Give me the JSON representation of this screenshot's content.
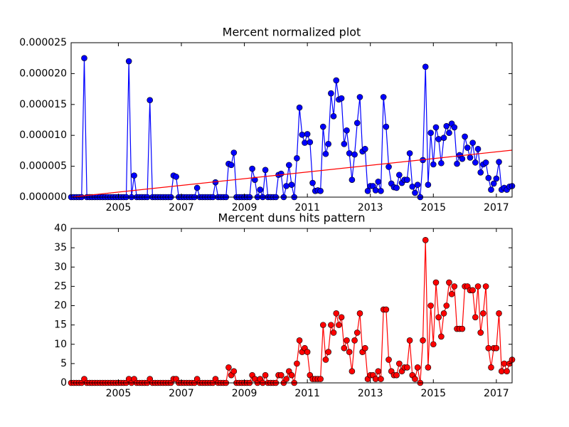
{
  "chart_data": [
    {
      "type": "line",
      "title": "Mercent normalized plot",
      "x": [
        2003.5,
        2003.583,
        2003.667,
        2003.75,
        2003.833,
        2003.917,
        2004,
        2004.083,
        2004.167,
        2004.25,
        2004.333,
        2004.417,
        2004.5,
        2004.583,
        2004.667,
        2004.75,
        2004.833,
        2004.917,
        2005,
        2005.083,
        2005.167,
        2005.25,
        2005.333,
        2005.417,
        2005.5,
        2005.583,
        2005.667,
        2005.75,
        2005.833,
        2005.917,
        2006,
        2006.083,
        2006.167,
        2006.25,
        2006.333,
        2006.417,
        2006.5,
        2006.583,
        2006.667,
        2006.75,
        2006.833,
        2006.917,
        2007,
        2007.083,
        2007.167,
        2007.25,
        2007.333,
        2007.417,
        2007.5,
        2007.583,
        2007.667,
        2007.75,
        2007.833,
        2007.917,
        2008,
        2008.083,
        2008.167,
        2008.25,
        2008.333,
        2008.417,
        2008.5,
        2008.583,
        2008.667,
        2008.75,
        2008.833,
        2008.917,
        2009,
        2009.083,
        2009.167,
        2009.25,
        2009.333,
        2009.417,
        2009.5,
        2009.583,
        2009.667,
        2009.75,
        2009.833,
        2009.917,
        2010,
        2010.083,
        2010.167,
        2010.25,
        2010.333,
        2010.417,
        2010.5,
        2010.583,
        2010.667,
        2010.75,
        2010.833,
        2010.917,
        2011,
        2011.083,
        2011.167,
        2011.25,
        2011.333,
        2011.417,
        2011.5,
        2011.583,
        2011.667,
        2011.75,
        2011.833,
        2011.917,
        2012,
        2012.083,
        2012.167,
        2012.25,
        2012.333,
        2012.417,
        2012.5,
        2012.583,
        2012.667,
        2012.75,
        2012.833,
        2012.917,
        2013,
        2013.083,
        2013.167,
        2013.25,
        2013.333,
        2013.417,
        2013.5,
        2013.583,
        2013.667,
        2013.75,
        2013.833,
        2013.917,
        2014,
        2014.083,
        2014.167,
        2014.25,
        2014.333,
        2014.417,
        2014.5,
        2014.583,
        2014.667,
        2014.75,
        2014.833,
        2014.917,
        2015,
        2015.083,
        2015.167,
        2015.25,
        2015.333,
        2015.417,
        2015.5,
        2015.583,
        2015.667,
        2015.75,
        2015.833,
        2015.917,
        2016,
        2016.083,
        2016.167,
        2016.25,
        2016.333,
        2016.417,
        2016.5,
        2016.583,
        2016.667,
        2016.75,
        2016.833,
        2016.917,
        2017,
        2017.083,
        2017.167,
        2017.25,
        2017.333,
        2017.417,
        2017.5
      ],
      "series": [
        {
          "color": "#0000ff",
          "marker": "o",
          "values": [
            0,
            0,
            0,
            0,
            0,
            2.25e-05,
            0,
            0,
            0,
            0,
            0,
            0,
            0,
            0,
            0,
            0,
            0,
            0,
            0,
            0,
            0,
            0,
            2.2e-05,
            0,
            3.5e-06,
            0,
            0,
            0,
            0,
            0,
            1.57e-05,
            0,
            0,
            0,
            0,
            0,
            0,
            0,
            0,
            3.5e-06,
            3.3e-06,
            0,
            0,
            0,
            0,
            0,
            0,
            0,
            1.5e-06,
            0,
            0,
            0,
            0,
            0,
            0,
            2.4e-06,
            0,
            0,
            0,
            0,
            5.4e-06,
            5.2e-06,
            7.2e-06,
            0,
            0,
            0,
            0,
            0,
            0,
            4.6e-06,
            2.8e-06,
            0,
            1.2e-06,
            0,
            4.4e-06,
            0,
            0,
            0,
            0,
            3.6e-06,
            3.8e-06,
            0,
            1.8e-06,
            5.2e-06,
            2e-06,
            0,
            6.3e-06,
            1.45e-05,
            1.01e-05,
            8.8e-06,
            1.02e-05,
            8.9e-06,
            2.3e-06,
            1e-06,
            1.1e-06,
            1e-06,
            1.14e-05,
            7e-06,
            8.6e-06,
            1.68e-05,
            1.31e-05,
            1.89e-05,
            1.58e-05,
            1.6e-05,
            8.6e-06,
            1.08e-05,
            7.1e-06,
            2.8e-06,
            6.9e-06,
            1.2e-05,
            1.62e-05,
            7.4e-06,
            7.8e-06,
            1e-06,
            1.8e-06,
            1.8e-06,
            1.1e-06,
            2.5e-06,
            1e-06,
            1.62e-05,
            1.14e-05,
            4.9e-06,
            2.2e-06,
            1.6e-06,
            1.5e-06,
            3.6e-06,
            2.3e-06,
            2.8e-06,
            2.8e-06,
            7.1e-06,
            1.7e-06,
            7e-07,
            2e-06,
            0,
            6e-06,
            2.11e-05,
            2e-06,
            1.04e-05,
            5.3e-06,
            1.13e-05,
            9.4e-06,
            5.5e-06,
            9.6e-06,
            1.15e-05,
            1.04e-05,
            1.19e-05,
            1.13e-05,
            5.4e-06,
            6.8e-06,
            6.2e-06,
            9.8e-06,
            8e-06,
            6.4e-06,
            8.8e-06,
            5.6e-06,
            7.8e-06,
            4e-06,
            5.3e-06,
            5.6e-06,
            3.1e-06,
            1.2e-06,
            2.2e-06,
            3e-06,
            5.7e-06,
            1.2e-06,
            1.5e-06,
            1.2e-06,
            1.7e-06,
            1.8e-06
          ]
        },
        {
          "color": "#ff0000",
          "marker": "none",
          "x": [
            2003.5,
            2017.5
          ],
          "values": [
            0,
            7.6e-06
          ]
        }
      ],
      "xlim": [
        2003.5,
        2017.5
      ],
      "xticks": [
        2005,
        2007,
        2009,
        2011,
        2013,
        2015,
        2017
      ],
      "ylim": [
        0,
        2.5e-05
      ],
      "yticks": [
        {
          "value": 0,
          "label": "0.000000"
        },
        {
          "value": 5e-06,
          "label": "0.000005"
        },
        {
          "value": 1e-05,
          "label": "0.000010"
        },
        {
          "value": 1.5e-05,
          "label": "0.000015"
        },
        {
          "value": 2e-05,
          "label": "0.000020"
        },
        {
          "value": 2.5e-05,
          "label": "0.000025"
        }
      ]
    },
    {
      "type": "line",
      "title": "Mercent duns hits pattern",
      "x": [
        2003.5,
        2003.583,
        2003.667,
        2003.75,
        2003.833,
        2003.917,
        2004,
        2004.083,
        2004.167,
        2004.25,
        2004.333,
        2004.417,
        2004.5,
        2004.583,
        2004.667,
        2004.75,
        2004.833,
        2004.917,
        2005,
        2005.083,
        2005.167,
        2005.25,
        2005.333,
        2005.417,
        2005.5,
        2005.583,
        2005.667,
        2005.75,
        2005.833,
        2005.917,
        2006,
        2006.083,
        2006.167,
        2006.25,
        2006.333,
        2006.417,
        2006.5,
        2006.583,
        2006.667,
        2006.75,
        2006.833,
        2006.917,
        2007,
        2007.083,
        2007.167,
        2007.25,
        2007.333,
        2007.417,
        2007.5,
        2007.583,
        2007.667,
        2007.75,
        2007.833,
        2007.917,
        2008,
        2008.083,
        2008.167,
        2008.25,
        2008.333,
        2008.417,
        2008.5,
        2008.583,
        2008.667,
        2008.75,
        2008.833,
        2008.917,
        2009,
        2009.083,
        2009.167,
        2009.25,
        2009.333,
        2009.417,
        2009.5,
        2009.583,
        2009.667,
        2009.75,
        2009.833,
        2009.917,
        2010,
        2010.083,
        2010.167,
        2010.25,
        2010.333,
        2010.417,
        2010.5,
        2010.583,
        2010.667,
        2010.75,
        2010.833,
        2010.917,
        2011,
        2011.083,
        2011.167,
        2011.25,
        2011.333,
        2011.417,
        2011.5,
        2011.583,
        2011.667,
        2011.75,
        2011.833,
        2011.917,
        2012,
        2012.083,
        2012.167,
        2012.25,
        2012.333,
        2012.417,
        2012.5,
        2012.583,
        2012.667,
        2012.75,
        2012.833,
        2012.917,
        2013,
        2013.083,
        2013.167,
        2013.25,
        2013.333,
        2013.417,
        2013.5,
        2013.583,
        2013.667,
        2013.75,
        2013.833,
        2013.917,
        2014,
        2014.083,
        2014.167,
        2014.25,
        2014.333,
        2014.417,
        2014.5,
        2014.583,
        2014.667,
        2014.75,
        2014.833,
        2014.917,
        2015,
        2015.083,
        2015.167,
        2015.25,
        2015.333,
        2015.417,
        2015.5,
        2015.583,
        2015.667,
        2015.75,
        2015.833,
        2015.917,
        2016,
        2016.083,
        2016.167,
        2016.25,
        2016.333,
        2016.417,
        2016.5,
        2016.583,
        2016.667,
        2016.75,
        2016.833,
        2016.917,
        2017,
        2017.083,
        2017.167,
        2017.25,
        2017.333,
        2017.417,
        2017.5
      ],
      "series": [
        {
          "color": "#ff0000",
          "marker": "o",
          "values": [
            0,
            0,
            0,
            0,
            0,
            1,
            0,
            0,
            0,
            0,
            0,
            0,
            0,
            0,
            0,
            0,
            0,
            0,
            0,
            0,
            0,
            0,
            1,
            0,
            1,
            0,
            0,
            0,
            0,
            0,
            1,
            0,
            0,
            0,
            0,
            0,
            0,
            0,
            0,
            1,
            1,
            0,
            0,
            0,
            0,
            0,
            0,
            0,
            1,
            0,
            0,
            0,
            0,
            0,
            0,
            1,
            0,
            0,
            0,
            0,
            4,
            2,
            3,
            0,
            0,
            0,
            0,
            0,
            0,
            2,
            1,
            0,
            1,
            0,
            2,
            0,
            0,
            0,
            0,
            2,
            2,
            0,
            1,
            3,
            2,
            0,
            5,
            11,
            8,
            9,
            8,
            2,
            1,
            1,
            1,
            1,
            15,
            6,
            8,
            15,
            13,
            18,
            15,
            17,
            9,
            11,
            8,
            3,
            11,
            13,
            18,
            8,
            9,
            1,
            2,
            2,
            1,
            3,
            1,
            19,
            19,
            6,
            3,
            2,
            2,
            5,
            3,
            4,
            4,
            11,
            2,
            1,
            4,
            0,
            11,
            37,
            4,
            20,
            10,
            26,
            17,
            12,
            18,
            20,
            26,
            23,
            25,
            14,
            14,
            14,
            25,
            25,
            24,
            24,
            17,
            25,
            13,
            18,
            25,
            9,
            4,
            9,
            9,
            18,
            3,
            5,
            3,
            5,
            6
          ]
        }
      ],
      "xlim": [
        2003.5,
        2017.5
      ],
      "xticks": [
        2005,
        2007,
        2009,
        2011,
        2013,
        2015,
        2017
      ],
      "ylim": [
        0,
        40
      ],
      "yticks": [
        0,
        5,
        10,
        15,
        20,
        25,
        30,
        35,
        40
      ]
    }
  ]
}
